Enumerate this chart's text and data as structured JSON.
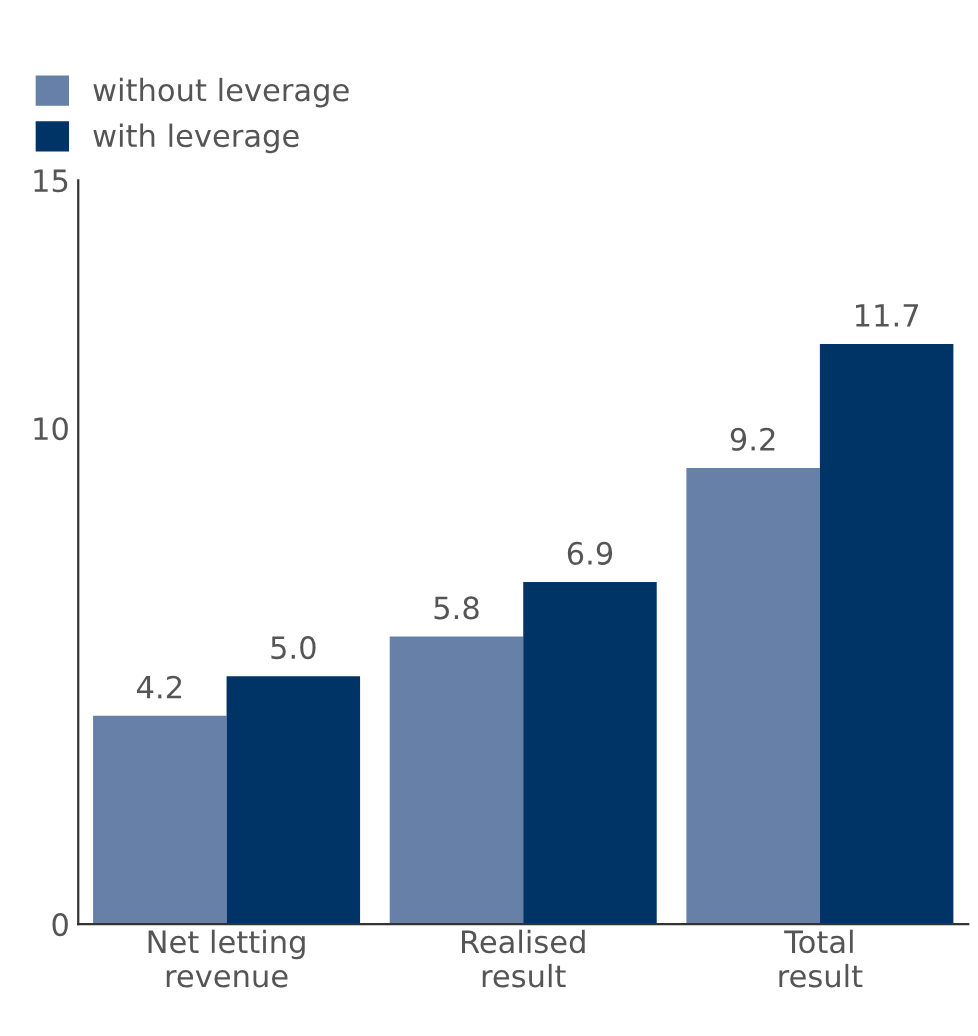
{
  "chart_data": {
    "type": "bar",
    "categories": [
      "Net letting revenue",
      "Realised result",
      "Total result"
    ],
    "series": [
      {
        "name": "without leverage",
        "color": "#6680a8",
        "values": [
          4.2,
          5.8,
          9.2
        ],
        "value_labels": [
          "4.2",
          "5.8",
          "9.2"
        ]
      },
      {
        "name": "with leverage",
        "color": "#003366",
        "values": [
          5.0,
          6.9,
          11.7
        ],
        "value_labels": [
          "5.0",
          "6.9",
          "11.7"
        ]
      }
    ],
    "ylim": [
      0,
      15
    ],
    "yticks": [
      0,
      10,
      15
    ],
    "grid": false,
    "legend": "top left"
  }
}
